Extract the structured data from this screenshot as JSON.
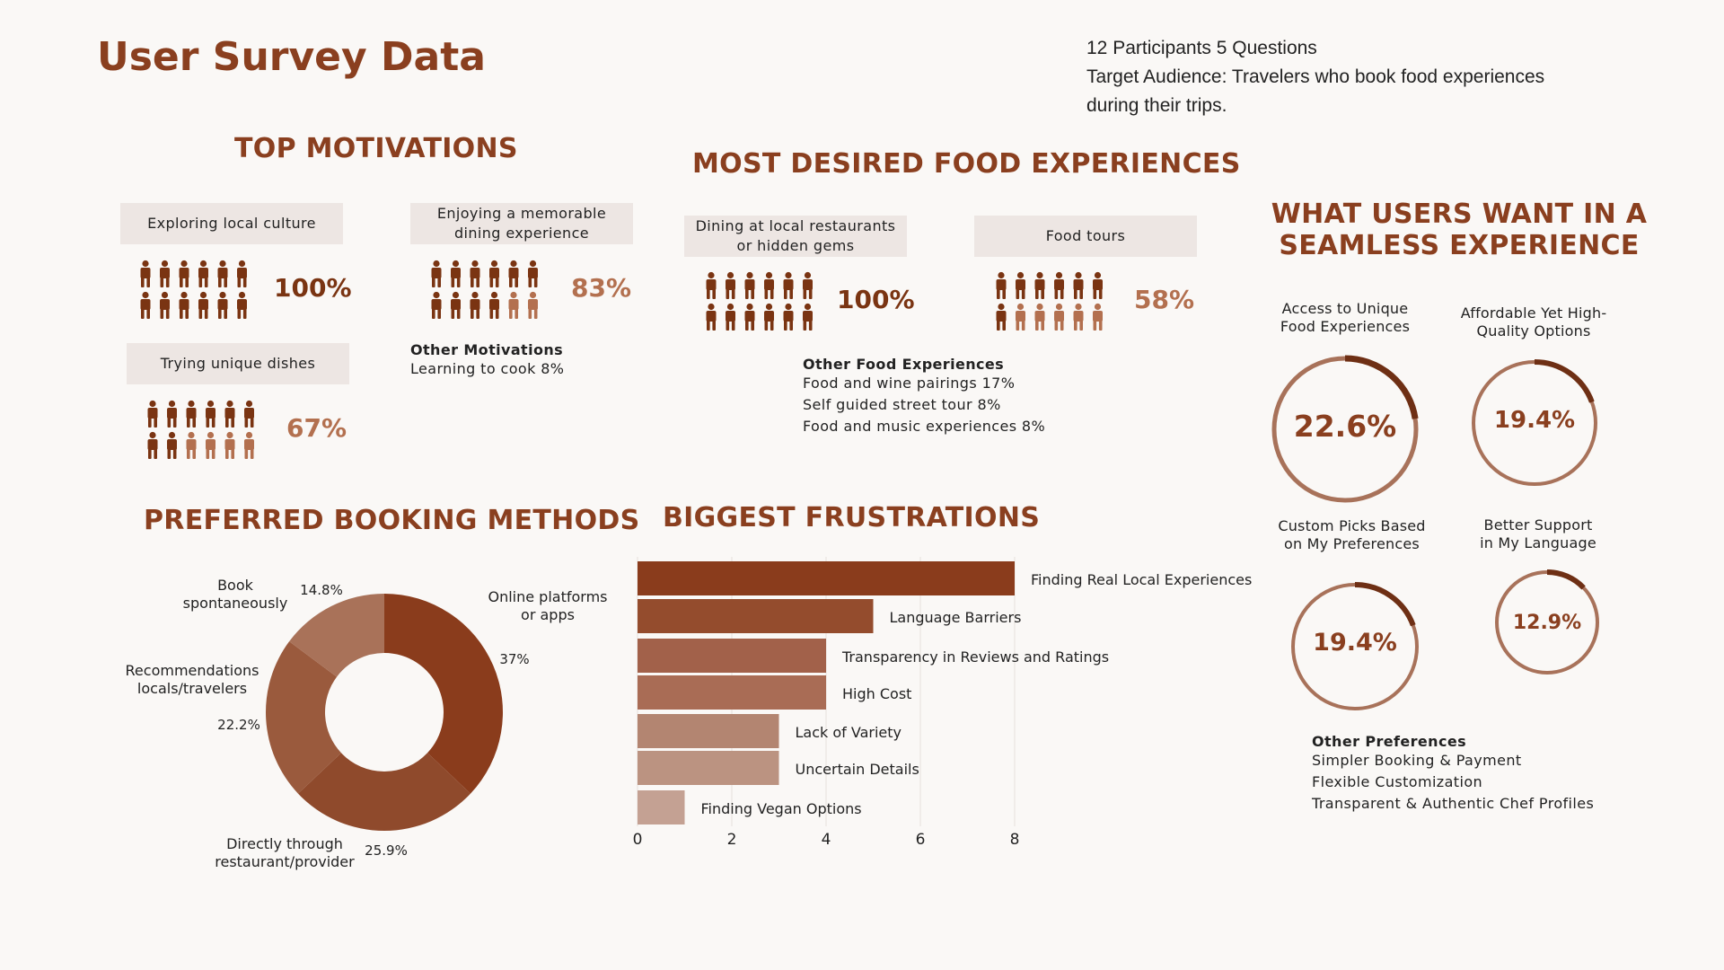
{
  "header": {
    "title": "User Survey Data",
    "info_line1": "12 Participants 5 Questions",
    "info_line2": "Target Audience: Travelers who book food experiences",
    "info_line3": "during their trips."
  },
  "colors": {
    "dark": "#7a3412",
    "light": "#b3704f",
    "accent": "#8a3f1f",
    "pill_bg": "#ede6e3"
  },
  "motivations": {
    "heading": "TOP MOTIVATIONS",
    "items": [
      {
        "label": "Exploring local culture",
        "pct": "100%",
        "filled": 12
      },
      {
        "label": "Enjoying a memorable dining experience",
        "pct": "83%",
        "filled": 10
      },
      {
        "label": "Trying unique dishes",
        "pct": "67%",
        "filled": 8
      }
    ],
    "other_title": "Other Motivations",
    "other_lines": [
      "Learning to cook 8%"
    ]
  },
  "food_experiences": {
    "heading": "MOST DESIRED FOOD EXPERIENCES",
    "items": [
      {
        "label": "Dining at local restaurants or hidden gems",
        "pct": "100%",
        "filled": 12
      },
      {
        "label": "Food tours",
        "pct": "58%",
        "filled": 7
      }
    ],
    "other_title": "Other Food Experiences",
    "other_lines": [
      "Food and wine pairings 17%",
      "Self guided street tour 8%",
      "Food and music experiences 8%"
    ]
  },
  "seamless": {
    "heading_line1": "WHAT USERS WANT IN A",
    "heading_line2": "SEAMLESS EXPERIENCE",
    "rings": [
      {
        "label": "Access to Unique Food Experiences",
        "value": "22.6%",
        "pct": 22.6
      },
      {
        "label": "Affordable Yet High-Quality Options",
        "value": "19.4%",
        "pct": 19.4
      },
      {
        "label": "Custom Picks Based on My Preferences",
        "value": "19.4%",
        "pct": 19.4
      },
      {
        "label": "Better Support in My Language",
        "value": "12.9%",
        "pct": 12.9
      }
    ],
    "other_title": "Other Preferences",
    "other_lines": [
      "Simpler Booking & Payment",
      "Flexible Customization",
      "Transparent & Authentic Chef Profiles"
    ]
  },
  "chart_data": [
    {
      "type": "pie",
      "title": "PREFERRED BOOKING METHODS",
      "donut": true,
      "slices": [
        {
          "label": "Online platforms or apps",
          "value": 37,
          "display": "37%",
          "color": "#8a3c1c"
        },
        {
          "label": "Directly through restaurant/provider",
          "value": 25.9,
          "display": "25.9%",
          "color": "#8f4a2c"
        },
        {
          "label": "Recommendations locals/travelers",
          "value": 22.2,
          "display": "22.2%",
          "color": "#9a5a3d"
        },
        {
          "label": "Book spontaneously",
          "value": 14.8,
          "display": "14.8%",
          "color": "#a97259"
        }
      ]
    },
    {
      "type": "bar",
      "orientation": "horizontal",
      "title": "BIGGEST FRUSTRATIONS",
      "categories": [
        "Finding Real Local Experiences",
        "Language Barriers",
        "Transparency in Reviews and Ratings",
        "High Cost",
        "Lack of Variety",
        "Uncertain Details",
        "Finding Vegan Options"
      ],
      "values": [
        8,
        5,
        4,
        4,
        3,
        3,
        1
      ],
      "colors": [
        "#8a3c1c",
        "#944c2d",
        "#a2614a",
        "#a96c55",
        "#b38571",
        "#bb9381",
        "#c4a193"
      ],
      "xlim": [
        0,
        8
      ],
      "xticks": [
        0,
        2,
        4,
        6,
        8
      ],
      "grid": true
    }
  ]
}
